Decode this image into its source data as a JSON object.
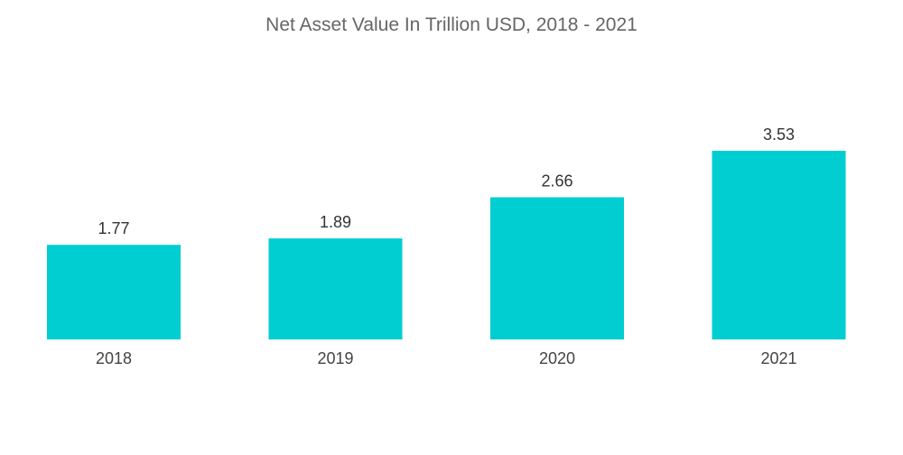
{
  "chart_data": {
    "type": "bar",
    "title": "Net Asset Value In Trillion USD, 2018 - 2021",
    "xlabel": "",
    "ylabel": "",
    "categories": [
      "2018",
      "2019",
      "2020",
      "2021"
    ],
    "values": [
      1.77,
      1.89,
      2.66,
      3.53
    ],
    "value_labels": [
      "1.77",
      "1.89",
      "2.66",
      "3.53"
    ],
    "ylim": [
      0,
      3.53
    ],
    "grid": false,
    "legend": "none",
    "bar_color": "#00CED1"
  }
}
